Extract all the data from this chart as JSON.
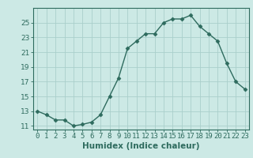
{
  "x": [
    0,
    1,
    2,
    3,
    4,
    5,
    6,
    7,
    8,
    9,
    10,
    11,
    12,
    13,
    14,
    15,
    16,
    17,
    18,
    19,
    20,
    21,
    22,
    23
  ],
  "y": [
    13.0,
    12.5,
    11.8,
    11.8,
    11.0,
    11.2,
    11.5,
    12.5,
    15.0,
    17.5,
    21.5,
    22.5,
    23.5,
    23.5,
    25.0,
    25.5,
    25.5,
    26.0,
    24.5,
    23.5,
    22.5,
    19.5,
    17.0,
    16.0
  ],
  "xlabel": "Humidex (Indice chaleur)",
  "ylim": [
    10.5,
    27
  ],
  "yticks": [
    11,
    13,
    15,
    17,
    19,
    21,
    23,
    25
  ],
  "xticks": [
    0,
    1,
    2,
    3,
    4,
    5,
    6,
    7,
    8,
    9,
    10,
    11,
    12,
    13,
    14,
    15,
    16,
    17,
    18,
    19,
    20,
    21,
    22,
    23
  ],
  "line_color": "#2e6b5e",
  "marker": "D",
  "marker_size": 2.5,
  "bg_color": "#cce9e5",
  "grid_color": "#aacfcb",
  "label_fontsize": 7.5,
  "tick_fontsize": 6.5
}
